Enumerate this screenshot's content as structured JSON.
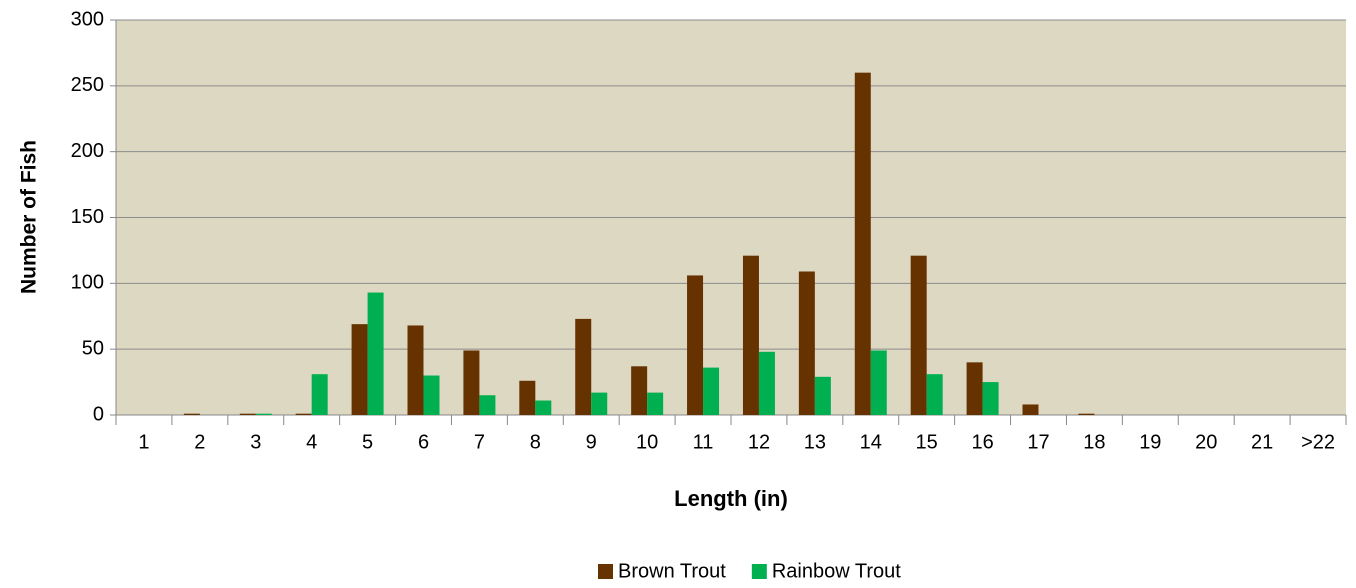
{
  "chart_data": {
    "type": "bar",
    "x_label": "Length (in)",
    "y_label": "Number of Fish",
    "categories": [
      "1",
      "2",
      "3",
      "4",
      "5",
      "6",
      "7",
      "8",
      "9",
      "10",
      "11",
      "12",
      "13",
      "14",
      "15",
      "16",
      "17",
      "18",
      "19",
      "20",
      "21",
      ">22"
    ],
    "series": [
      {
        "name": "Brown Trout",
        "color": "#663300",
        "values": [
          0,
          1,
          1,
          1,
          69,
          68,
          49,
          26,
          73,
          37,
          106,
          121,
          109,
          260,
          121,
          40,
          8,
          1,
          0,
          0,
          0,
          0
        ]
      },
      {
        "name": "Rainbow Trout",
        "color": "#00b050",
        "values": [
          0,
          0,
          1,
          31,
          93,
          30,
          15,
          11,
          17,
          17,
          36,
          48,
          29,
          49,
          31,
          25,
          0,
          0,
          0,
          0,
          0,
          0
        ]
      }
    ],
    "ylim": [
      0,
      300
    ],
    "yticks": [
      0,
      50,
      100,
      150,
      200,
      250,
      300
    ],
    "grid": true,
    "legend": "bottom"
  }
}
